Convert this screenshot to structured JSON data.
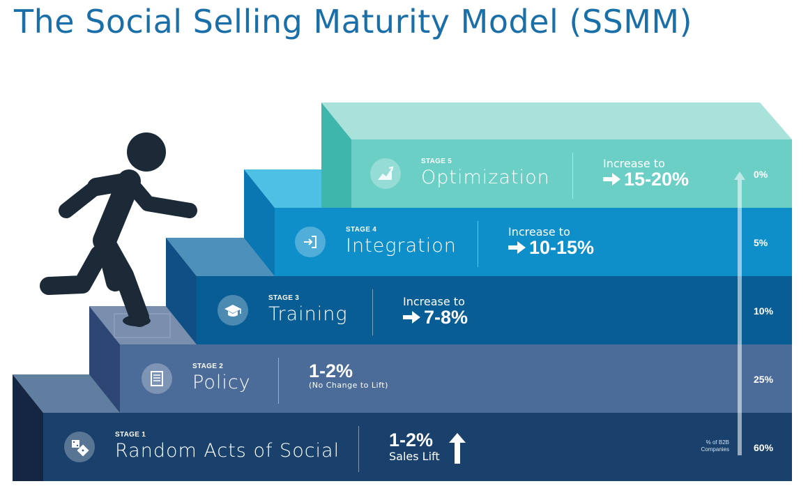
{
  "title": "The Social Selling Maturity Model (SSMM)",
  "stages": [
    {
      "label": "STAGE 1",
      "name": "Random Acts of Social",
      "lift_value": "1-2%",
      "lift_note": "Sales Lift",
      "percent": "60%",
      "icon": "dice-icon",
      "color": "#19416b"
    },
    {
      "label": "STAGE 2",
      "name": "Policy",
      "lift_value": "1-2%",
      "lift_note": "(No Change to Lift)",
      "percent": "25%",
      "icon": "document-icon",
      "color": "#4b6b98"
    },
    {
      "label": "STAGE 3",
      "name": "Training",
      "lift_prefix": "Increase to",
      "lift_value": "7-8%",
      "percent": "10%",
      "icon": "graduation-cap-icon",
      "color": "#095d95"
    },
    {
      "label": "STAGE 4",
      "name": "Integration",
      "lift_prefix": "Increase to",
      "lift_value": "10-15%",
      "percent": "5%",
      "icon": "login-icon",
      "color": "#0f8fc9"
    },
    {
      "label": "STAGE 5",
      "name": "Optimization",
      "lift_prefix": "Increase to",
      "lift_value": "15-20%",
      "percent": "0%",
      "icon": "growth-chart-icon",
      "color": "#6ccfc6"
    }
  ],
  "percent_caption_line1": "% of B2B",
  "percent_caption_line2": "Companies",
  "figure_icon": "running-person-icon"
}
